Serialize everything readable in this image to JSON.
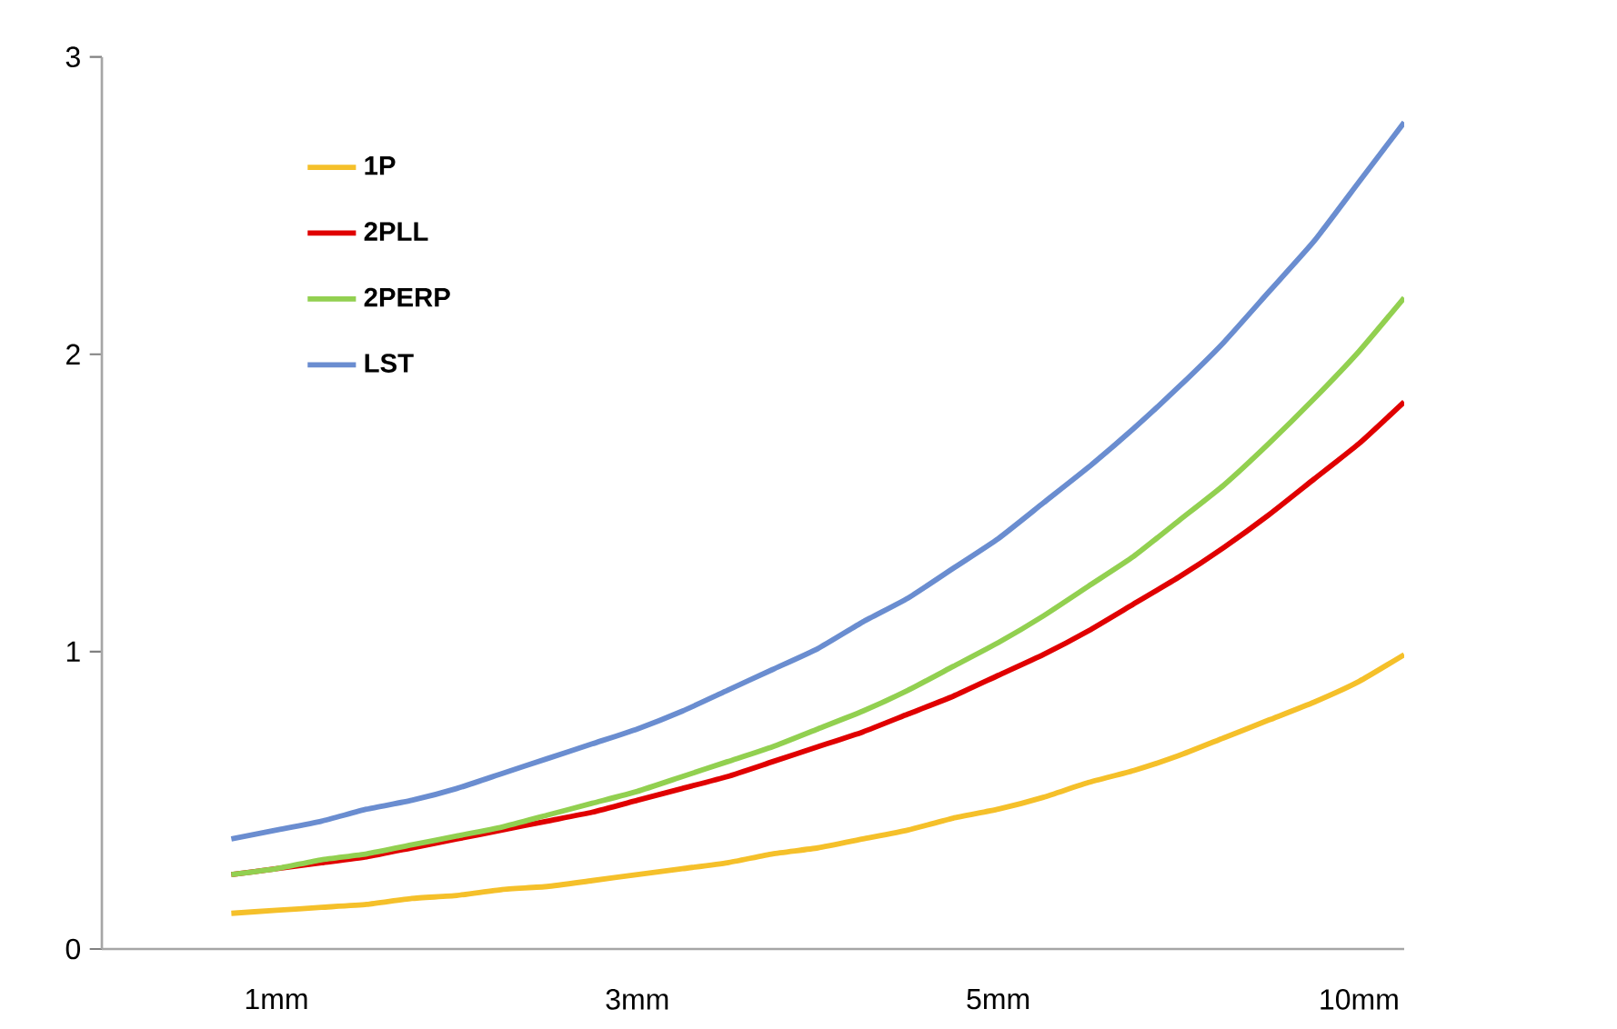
{
  "chart_data": {
    "type": "line",
    "categories": [
      null,
      "1mm",
      null,
      null,
      null,
      null,
      null,
      null,
      null,
      "3mm",
      null,
      null,
      null,
      null,
      null,
      null,
      null,
      "5mm",
      null,
      null,
      null,
      null,
      null,
      null,
      null,
      "10mm",
      null
    ],
    "series": [
      {
        "name": "1P",
        "color": "#f5c02a",
        "values": [
          0.12,
          0.13,
          0.14,
          0.15,
          0.17,
          0.18,
          0.2,
          0.21,
          0.23,
          0.25,
          0.27,
          0.29,
          0.32,
          0.34,
          0.37,
          0.4,
          0.44,
          0.47,
          0.51,
          0.56,
          0.6,
          0.65,
          0.71,
          0.77,
          0.83,
          0.9,
          0.99
        ]
      },
      {
        "name": "2PLL",
        "color": "#e00000",
        "values": [
          0.25,
          0.27,
          0.29,
          0.31,
          0.34,
          0.37,
          0.4,
          0.43,
          0.46,
          0.5,
          0.54,
          0.58,
          0.63,
          0.68,
          0.73,
          0.79,
          0.85,
          0.92,
          0.99,
          1.07,
          1.16,
          1.25,
          1.35,
          1.46,
          1.58,
          1.7,
          1.84
        ]
      },
      {
        "name": "2PERP",
        "color": "#92d050",
        "values": [
          0.25,
          0.27,
          0.3,
          0.32,
          0.35,
          0.38,
          0.41,
          0.45,
          0.49,
          0.53,
          0.58,
          0.63,
          0.68,
          0.74,
          0.8,
          0.87,
          0.95,
          1.03,
          1.12,
          1.22,
          1.32,
          1.44,
          1.56,
          1.7,
          1.85,
          2.01,
          2.19
        ]
      },
      {
        "name": "LST",
        "color": "#6a8dd0",
        "values": [
          0.37,
          0.4,
          0.43,
          0.47,
          0.5,
          0.54,
          0.59,
          0.64,
          0.69,
          0.74,
          0.8,
          0.87,
          0.94,
          1.01,
          1.1,
          1.18,
          1.28,
          1.38,
          1.5,
          1.62,
          1.75,
          1.89,
          2.04,
          2.21,
          2.38,
          2.58,
          2.78
        ]
      }
    ],
    "ylim": [
      0,
      3
    ],
    "yticks": [
      0,
      1,
      2,
      3
    ],
    "grid": false,
    "legend": "top left",
    "marker": "none",
    "line_style": "solid"
  }
}
